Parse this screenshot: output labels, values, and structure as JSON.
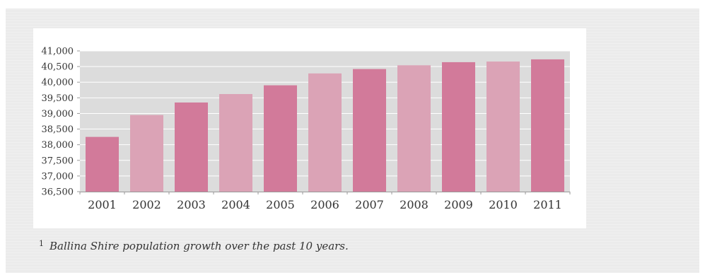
{
  "chart_data": {
    "type": "bar",
    "categories": [
      "2001",
      "2002",
      "2003",
      "2004",
      "2005",
      "2006",
      "2007",
      "2008",
      "2009",
      "2010",
      "2011"
    ],
    "values": [
      38250,
      38950,
      39350,
      39620,
      39900,
      40280,
      40420,
      40540,
      40640,
      40660,
      40730
    ],
    "ylim": [
      36500,
      41000
    ],
    "yticks": [
      "36,500",
      "37,000",
      "37,500",
      "38,000",
      "38,500",
      "39,000",
      "39,500",
      "40,000",
      "40,500",
      "41,000"
    ],
    "grid": true,
    "colors": {
      "primary": "#d27a9a",
      "secondary": "#dba3b6",
      "plot_bg": "#dcdcdc",
      "grid": "#ffffff"
    }
  },
  "caption": {
    "number": "1",
    "text": "Ballina Shire population growth over the past 10 years."
  }
}
